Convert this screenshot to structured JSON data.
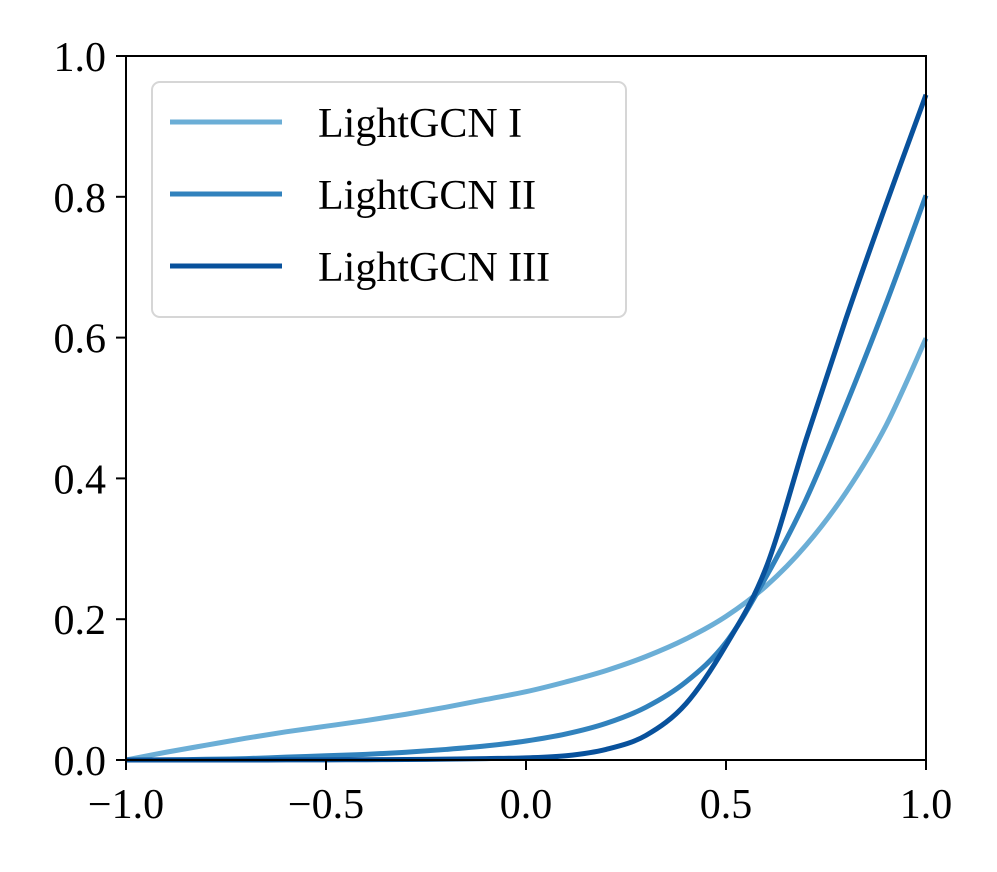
{
  "chart_data": {
    "type": "line",
    "title": "",
    "xlabel": "",
    "ylabel": "",
    "xlim": [
      -1.0,
      1.0
    ],
    "ylim": [
      0.0,
      1.0
    ],
    "grid": false,
    "legend_position": "top-left",
    "x_ticks": [
      -1.0,
      -0.5,
      0.0,
      0.5,
      1.0
    ],
    "x_tick_labels": [
      "−1.0",
      "−0.5",
      "0.0",
      "0.5",
      "1.0"
    ],
    "y_ticks": [
      0.0,
      0.2,
      0.4,
      0.6,
      0.8,
      1.0
    ],
    "y_tick_labels": [
      "0.0",
      "0.2",
      "0.4",
      "0.6",
      "0.8",
      "1.0"
    ],
    "x": [
      -1.0,
      -0.9,
      -0.8,
      -0.7,
      -0.6,
      -0.5,
      -0.4,
      -0.3,
      -0.2,
      -0.1,
      0.0,
      0.1,
      0.2,
      0.3,
      0.4,
      0.5,
      0.6,
      0.7,
      0.8,
      0.9,
      1.0
    ],
    "series": [
      {
        "name": "LightGCN I",
        "color": "#6baed6",
        "values": [
          0.0,
          0.011,
          0.021,
          0.031,
          0.04,
          0.048,
          0.056,
          0.065,
          0.075,
          0.086,
          0.097,
          0.111,
          0.127,
          0.147,
          0.172,
          0.204,
          0.247,
          0.305,
          0.38,
          0.475,
          0.599
        ]
      },
      {
        "name": "LightGCN II",
        "color": "#3182bd",
        "values": [
          0.0,
          0.0003,
          0.001,
          0.002,
          0.004,
          0.006,
          0.008,
          0.011,
          0.015,
          0.02,
          0.027,
          0.037,
          0.052,
          0.075,
          0.111,
          0.167,
          0.26,
          0.37,
          0.504,
          0.648,
          0.802
        ]
      },
      {
        "name": "LightGCN III",
        "color": "#08519c",
        "values": [
          0.0,
          0.0,
          0.0,
          0.0,
          0.0001,
          0.0002,
          0.0004,
          0.0007,
          0.0012,
          0.002,
          0.003,
          0.006,
          0.015,
          0.035,
          0.08,
          0.163,
          0.273,
          0.455,
          0.627,
          0.789,
          0.945
        ]
      }
    ]
  }
}
